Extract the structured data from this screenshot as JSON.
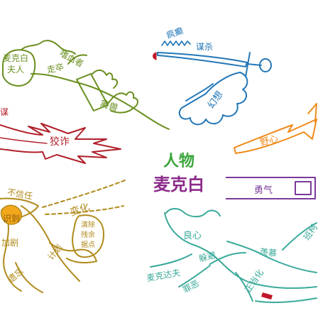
{
  "center": {
    "line1": "人物",
    "line2": "麦克白",
    "color1": "#3aa53a",
    "color2": "#8a2a8a"
  },
  "branches": {
    "lady": {
      "color": "#6a8f1f",
      "labels": {
        "name": "麦克白\n夫人",
        "lackey": "走卒",
        "bloodthirsty": "嗜血者",
        "beast": "禽兽"
      }
    },
    "murder": {
      "color": "#2277b8",
      "labels": {
        "madness": "疯癫",
        "murder": "谋杀",
        "fantasy": "幻想"
      }
    },
    "ambition": {
      "color": "#f08a1a",
      "labels": {
        "ambition": "野心"
      }
    },
    "cunning": {
      "color": "#b0202a",
      "labels": {
        "cunning": "狡诈",
        "plot": "谋"
      }
    },
    "courage": {
      "color": "#7a3a9a",
      "labels": {
        "courage": "勇气"
      }
    },
    "change": {
      "color": "#b08a1a",
      "labels": {
        "distrust": "不信任",
        "change": "变化",
        "aware": "识到",
        "intensify": "加剧",
        "forget": "遗忘",
        "plan": "计划",
        "purge": "清除\n残余\n据点"
      }
    },
    "conscience": {
      "color": "#3aaa9a",
      "labels": {
        "conscience": "良心",
        "mcduff": "麦克达夫",
        "evade": "躲避",
        "sin": "罪恶",
        "envy": "羡慕",
        "justify": "正当化",
        "banquo": "班柯"
      }
    }
  }
}
